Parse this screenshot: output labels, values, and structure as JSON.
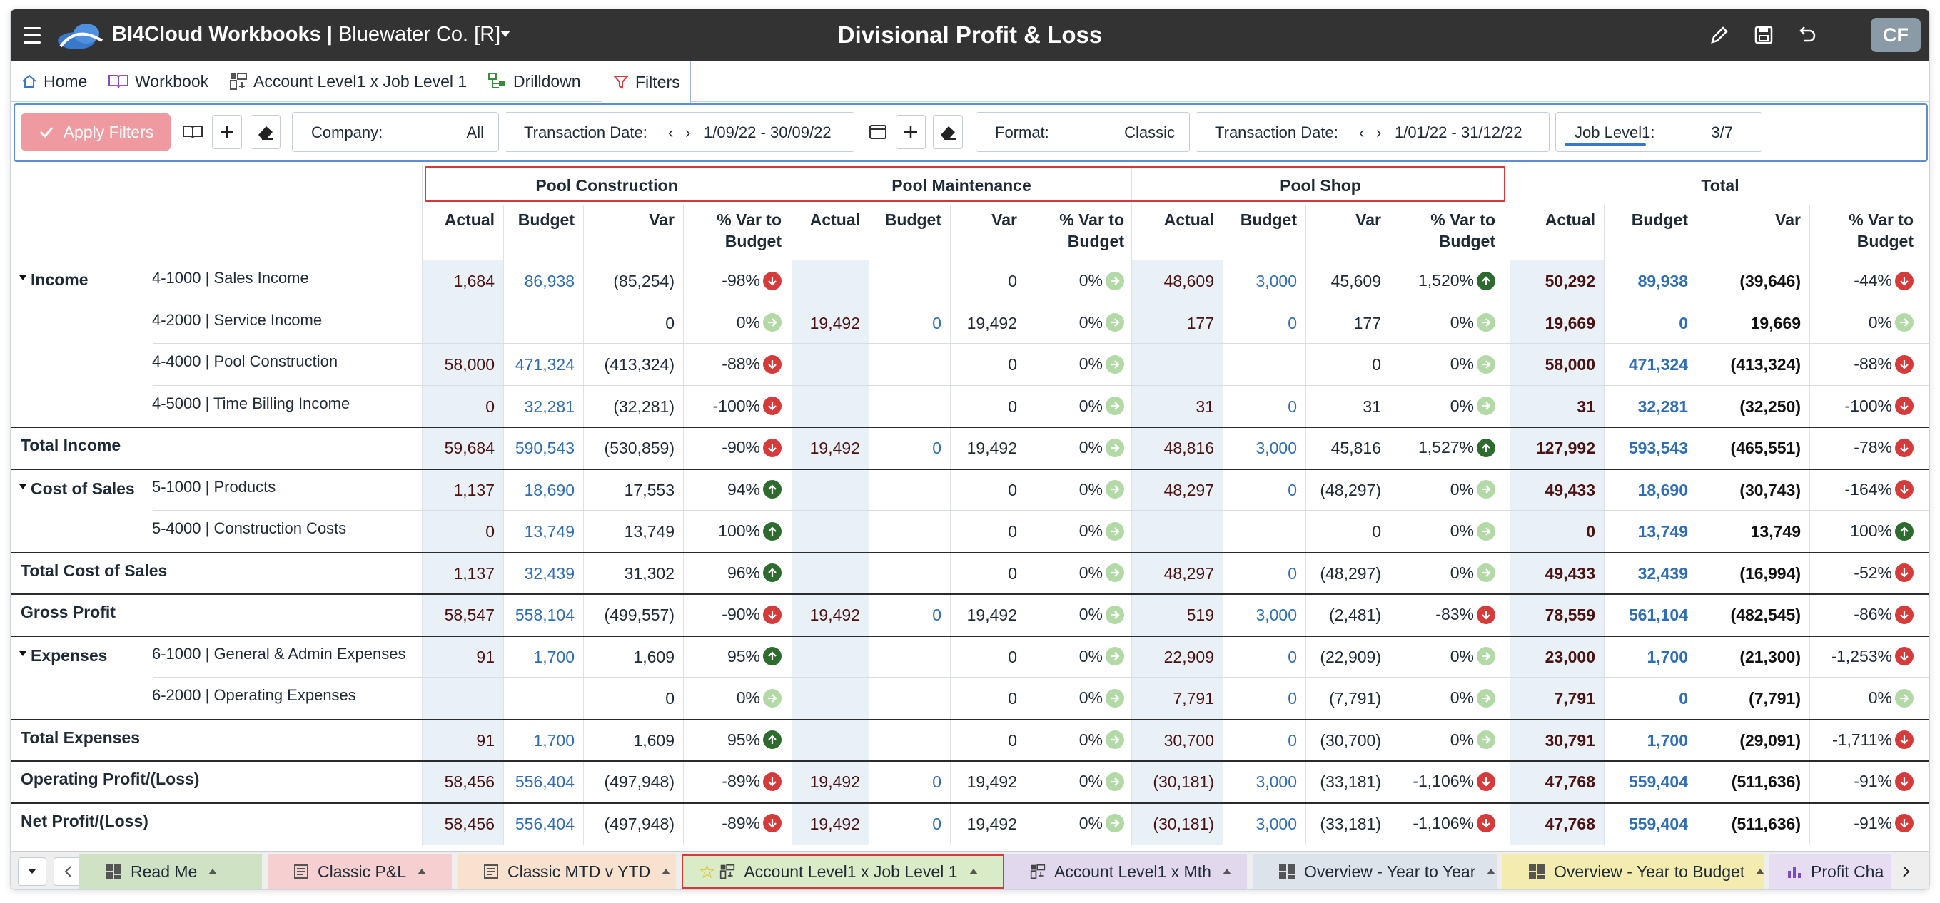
{
  "app": {
    "title": "BI4Cloud Workbooks |",
    "company": "Bluewater Co. [R]",
    "report_title": "Divisional Profit & Loss",
    "user_initials": "CF"
  },
  "nav": {
    "tabs": [
      {
        "label": "Home",
        "icon": "home-icon"
      },
      {
        "label": "Workbook",
        "icon": "book-icon"
      },
      {
        "label": "Account Level1 x Job Level 1",
        "icon": "pivot-icon"
      },
      {
        "label": "Drilldown",
        "icon": "drilldown-icon"
      },
      {
        "label": "Filters",
        "icon": "filter-icon"
      }
    ]
  },
  "filters": {
    "apply_label": "Apply Filters",
    "company_label": "Company:",
    "company_value": "All",
    "date1_label": "Transaction Date:",
    "date1_value": "1/09/22 - 30/09/22",
    "format_label": "Format:",
    "format_value": "Classic",
    "date2_label": "Transaction Date:",
    "date2_value": "1/01/22 - 31/12/22",
    "job_label": "Job Level1:",
    "job_value": "3/7",
    "job_progress": 0.43
  },
  "table": {
    "groups": [
      "Pool Construction",
      "Pool Maintenance",
      "Pool Shop",
      "Total"
    ],
    "columns": [
      "Actual",
      "Budget",
      "Var",
      "% Var to Budget"
    ],
    "rows": [
      {
        "section": "Income",
        "account": "4-1000 | Sales Income",
        "cells": [
          [
            "1,684",
            "86,938",
            "(85,254)",
            "-98%",
            "down"
          ],
          [
            "",
            "",
            "0",
            "0%",
            "neutral"
          ],
          [
            "48,609",
            "3,000",
            "45,609",
            "1,520%",
            "up"
          ],
          [
            "50,292",
            "89,938",
            "(39,646)",
            "-44%",
            "down"
          ]
        ]
      },
      {
        "section": "",
        "account": "4-2000 | Service Income",
        "cells": [
          [
            "",
            "",
            "0",
            "0%",
            "neutral"
          ],
          [
            "19,492",
            "0",
            "19,492",
            "0%",
            "neutral"
          ],
          [
            "177",
            "0",
            "177",
            "0%",
            "neutral"
          ],
          [
            "19,669",
            "0",
            "19,669",
            "0%",
            "neutral"
          ]
        ]
      },
      {
        "section": "",
        "account": "4-4000 | Pool Construction",
        "cells": [
          [
            "58,000",
            "471,324",
            "(413,324)",
            "-88%",
            "down"
          ],
          [
            "",
            "",
            "0",
            "0%",
            "neutral"
          ],
          [
            "",
            "",
            "0",
            "0%",
            "neutral"
          ],
          [
            "58,000",
            "471,324",
            "(413,324)",
            "-88%",
            "down"
          ]
        ]
      },
      {
        "section": "",
        "account": "4-5000 | Time Billing Income",
        "cells": [
          [
            "0",
            "32,281",
            "(32,281)",
            "-100%",
            "down"
          ],
          [
            "",
            "",
            "0",
            "0%",
            "neutral"
          ],
          [
            "31",
            "0",
            "31",
            "0%",
            "neutral"
          ],
          [
            "31",
            "32,281",
            "(32,250)",
            "-100%",
            "down"
          ]
        ]
      },
      {
        "total": "Total Income",
        "cells": [
          [
            "59,684",
            "590,543",
            "(530,859)",
            "-90%",
            "down"
          ],
          [
            "19,492",
            "0",
            "19,492",
            "0%",
            "neutral"
          ],
          [
            "48,816",
            "3,000",
            "45,816",
            "1,527%",
            "up"
          ],
          [
            "127,992",
            "593,543",
            "(465,551)",
            "-78%",
            "down"
          ]
        ]
      },
      {
        "section": "Cost of Sales",
        "account": "5-1000 | Products",
        "cells": [
          [
            "1,137",
            "18,690",
            "17,553",
            "94%",
            "up"
          ],
          [
            "",
            "",
            "0",
            "0%",
            "neutral"
          ],
          [
            "48,297",
            "0",
            "(48,297)",
            "0%",
            "neutral"
          ],
          [
            "49,433",
            "18,690",
            "(30,743)",
            "-164%",
            "down"
          ]
        ]
      },
      {
        "section": "",
        "account": "5-4000 | Construction Costs",
        "cells": [
          [
            "0",
            "13,749",
            "13,749",
            "100%",
            "up"
          ],
          [
            "",
            "",
            "0",
            "0%",
            "neutral"
          ],
          [
            "",
            "",
            "0",
            "0%",
            "neutral"
          ],
          [
            "0",
            "13,749",
            "13,749",
            "100%",
            "up"
          ]
        ]
      },
      {
        "total": "Total Cost of Sales",
        "cells": [
          [
            "1,137",
            "32,439",
            "31,302",
            "96%",
            "up"
          ],
          [
            "",
            "",
            "0",
            "0%",
            "neutral"
          ],
          [
            "48,297",
            "0",
            "(48,297)",
            "0%",
            "neutral"
          ],
          [
            "49,433",
            "32,439",
            "(16,994)",
            "-52%",
            "down"
          ]
        ]
      },
      {
        "total": "Gross Profit",
        "cells": [
          [
            "58,547",
            "558,104",
            "(499,557)",
            "-90%",
            "down"
          ],
          [
            "19,492",
            "0",
            "19,492",
            "0%",
            "neutral"
          ],
          [
            "519",
            "3,000",
            "(2,481)",
            "-83%",
            "down"
          ],
          [
            "78,559",
            "561,104",
            "(482,545)",
            "-86%",
            "down"
          ]
        ]
      },
      {
        "section": "Expenses",
        "account": "6-1000 | General & Admin Expenses",
        "cells": [
          [
            "91",
            "1,700",
            "1,609",
            "95%",
            "up"
          ],
          [
            "",
            "",
            "0",
            "0%",
            "neutral"
          ],
          [
            "22,909",
            "0",
            "(22,909)",
            "0%",
            "neutral"
          ],
          [
            "23,000",
            "1,700",
            "(21,300)",
            "-1,253%",
            "down"
          ]
        ]
      },
      {
        "section": "",
        "account": "6-2000 | Operating Expenses",
        "cells": [
          [
            "",
            "",
            "0",
            "0%",
            "neutral"
          ],
          [
            "",
            "",
            "0",
            "0%",
            "neutral"
          ],
          [
            "7,791",
            "0",
            "(7,791)",
            "0%",
            "neutral"
          ],
          [
            "7,791",
            "0",
            "(7,791)",
            "0%",
            "neutral"
          ]
        ]
      },
      {
        "total": "Total Expenses",
        "cells": [
          [
            "91",
            "1,700",
            "1,609",
            "95%",
            "up"
          ],
          [
            "",
            "",
            "0",
            "0%",
            "neutral"
          ],
          [
            "30,700",
            "0",
            "(30,700)",
            "0%",
            "neutral"
          ],
          [
            "30,791",
            "1,700",
            "(29,091)",
            "-1,711%",
            "down"
          ]
        ]
      },
      {
        "total": "Operating Profit/(Loss)",
        "cells": [
          [
            "58,456",
            "556,404",
            "(497,948)",
            "-89%",
            "down"
          ],
          [
            "19,492",
            "0",
            "19,492",
            "0%",
            "neutral"
          ],
          [
            "(30,181)",
            "3,000",
            "(33,181)",
            "-1,106%",
            "down"
          ],
          [
            "47,768",
            "559,404",
            "(511,636)",
            "-91%",
            "down"
          ]
        ]
      },
      {
        "total": "Net Profit/(Loss)",
        "cells": [
          [
            "58,456",
            "556,404",
            "(497,948)",
            "-89%",
            "down"
          ],
          [
            "19,492",
            "0",
            "19,492",
            "0%",
            "neutral"
          ],
          [
            "(30,181)",
            "3,000",
            "(33,181)",
            "-1,106%",
            "down"
          ],
          [
            "47,768",
            "559,404",
            "(511,636)",
            "-91%",
            "down"
          ]
        ]
      }
    ]
  },
  "sheets": [
    {
      "label": "Read Me",
      "color": "#cfe3c4",
      "icon": "dashboard-icon"
    },
    {
      "label": "Classic P&L",
      "color": "#f6d0d0",
      "icon": "report-icon"
    },
    {
      "label": "Classic MTD v YTD",
      "color": "#f8e1cd",
      "icon": "report-icon"
    },
    {
      "label": "Account Level1 x Job Level 1",
      "color": "#d9ecc7",
      "icon": "pivot-icon",
      "starred": true
    },
    {
      "label": "Account Level1 x Mth",
      "color": "#e2d8ee",
      "icon": "pivot-icon"
    },
    {
      "label": "Overview - Year to Year",
      "color": "#dde3ea",
      "icon": "dashboard-icon"
    },
    {
      "label": "Overview - Year to Budget",
      "color": "#f3ecae",
      "icon": "dashboard-icon"
    },
    {
      "label": "Profit Cha",
      "color": "#e6ddf2",
      "icon": "bar-chart-icon"
    }
  ],
  "colors": {
    "titlebar": "#333333",
    "accent": "#3a78c9",
    "budget": "#2f6eb5",
    "negative_indicator": "#d63b3b",
    "positive_indicator": "#2e6b2e",
    "neutral_indicator": "#b3d9a7",
    "highlight_box": "#d9383a"
  }
}
